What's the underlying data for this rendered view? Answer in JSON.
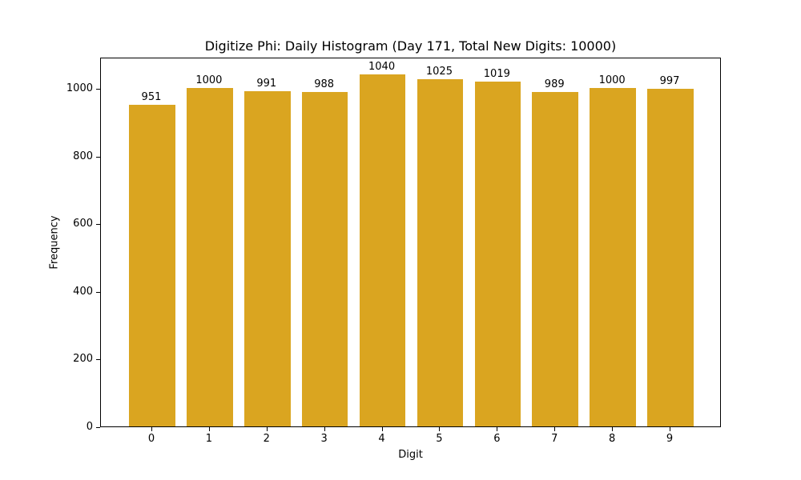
{
  "chart_data": {
    "type": "bar",
    "title": "Digitize Phi: Daily Histogram (Day 171, Total New Digits: 10000)",
    "xlabel": "Digit",
    "ylabel": "Frequency",
    "categories": [
      "0",
      "1",
      "2",
      "3",
      "4",
      "5",
      "6",
      "7",
      "8",
      "9"
    ],
    "values": [
      951,
      1000,
      991,
      988,
      1040,
      1025,
      1019,
      989,
      1000,
      997
    ],
    "value_labels": [
      "951",
      "1000",
      "991",
      "988",
      "1040",
      "1025",
      "1019",
      "989",
      "1000",
      "997"
    ],
    "ylim": [
      0,
      1092
    ],
    "yticks": [
      "0",
      "200",
      "400",
      "600",
      "800",
      "1000"
    ],
    "grid": false,
    "legend": null,
    "bar_color": "#daa520"
  }
}
